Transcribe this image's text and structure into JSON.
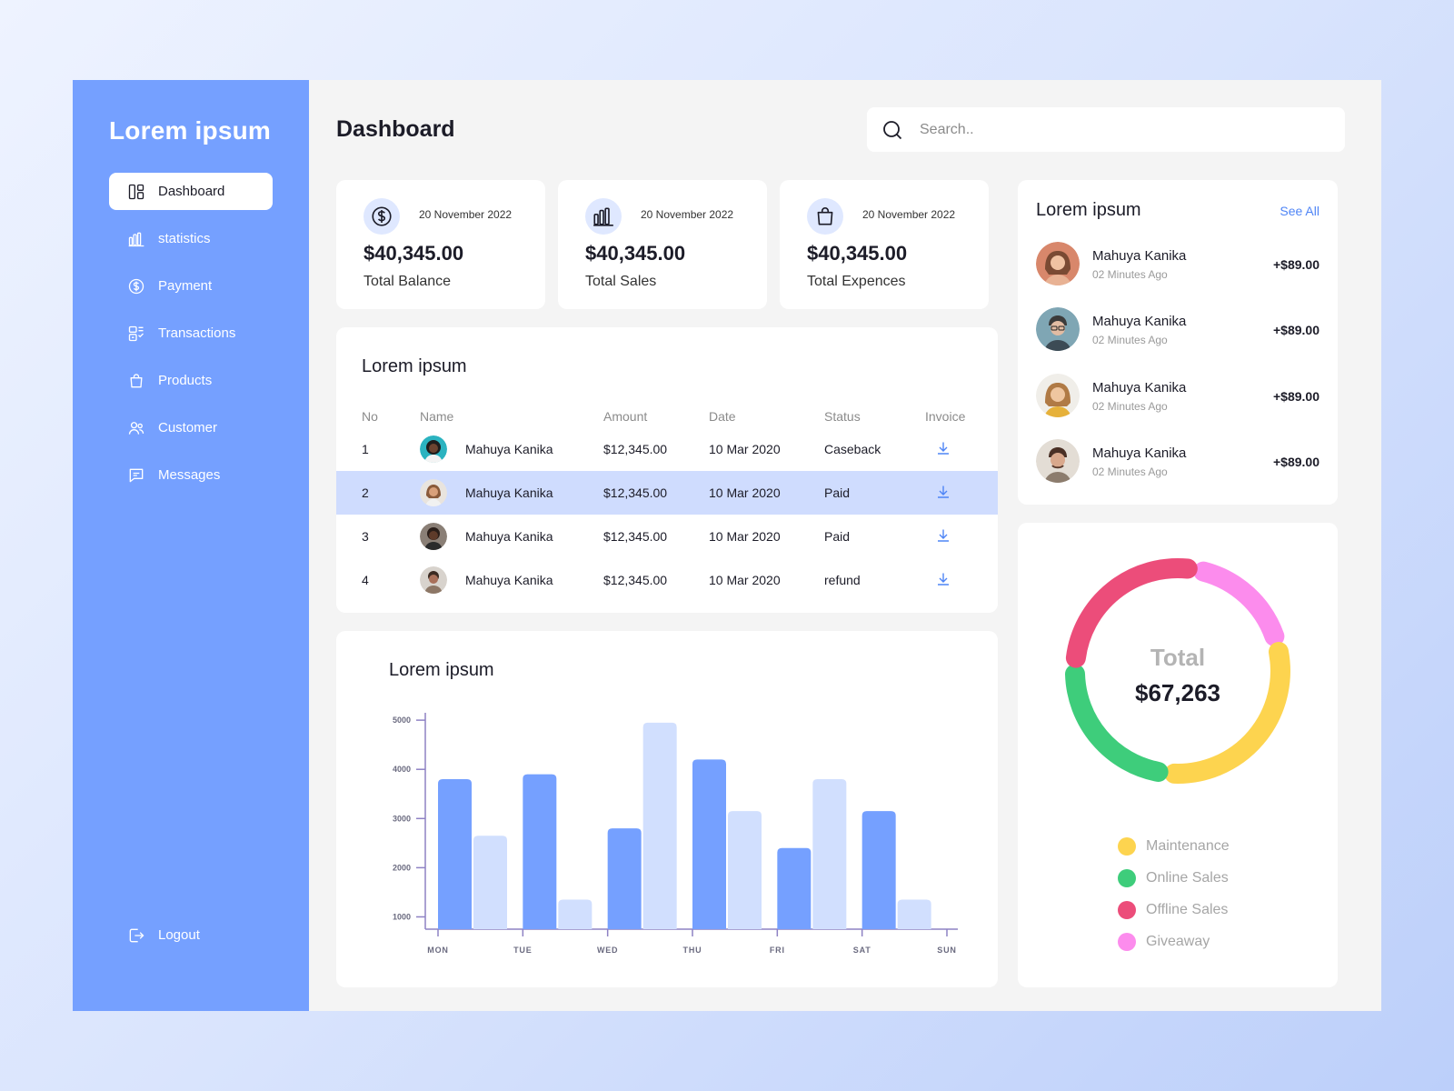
{
  "brand": "Lorem ipsum",
  "sidebar": {
    "items": [
      {
        "label": "Dashboard",
        "icon": "dashboard-icon",
        "active": true
      },
      {
        "label": "statistics",
        "icon": "bar-chart-icon"
      },
      {
        "label": "Payment",
        "icon": "dollar-circle-icon"
      },
      {
        "label": "Transactions",
        "icon": "transactions-icon"
      },
      {
        "label": "Products",
        "icon": "shopping-bag-icon"
      },
      {
        "label": "Customer",
        "icon": "users-icon"
      },
      {
        "label": "Messages",
        "icon": "message-icon"
      }
    ],
    "logout": "Logout"
  },
  "header": {
    "title": "Dashboard",
    "search_placeholder": "Search.."
  },
  "stats": [
    {
      "date": "20 November 2022",
      "amount": "$40,345.00",
      "label": "Total Balance",
      "icon": "dollar-circle-icon"
    },
    {
      "date": "20 November 2022",
      "amount": "$40,345.00",
      "label": "Total Sales",
      "icon": "bar-chart-icon"
    },
    {
      "date": "20 November 2022",
      "amount": "$40,345.00",
      "label": "Total Expences",
      "icon": "shopping-bag-icon"
    }
  ],
  "table": {
    "title": "Lorem ipsum",
    "columns": [
      "No",
      "Name",
      "Amount",
      "Date",
      "Status",
      "Invoice"
    ],
    "rows": [
      {
        "no": "1",
        "name": "Mahuya Kanika",
        "amount": "$12,345.00",
        "date": "10 Mar 2020",
        "status": "Caseback",
        "selected": false
      },
      {
        "no": "2",
        "name": "Mahuya Kanika",
        "amount": "$12,345.00",
        "date": "10 Mar 2020",
        "status": "Paid",
        "selected": true
      },
      {
        "no": "3",
        "name": "Mahuya Kanika",
        "amount": "$12,345.00",
        "date": "10 Mar 2020",
        "status": "Paid",
        "selected": false
      },
      {
        "no": "4",
        "name": "Mahuya Kanika",
        "amount": "$12,345.00",
        "date": "10 Mar 2020",
        "status": "refund",
        "selected": false
      }
    ]
  },
  "recent": {
    "title": "Lorem ipsum",
    "see_all": "See All",
    "items": [
      {
        "name": "Mahuya Kanika",
        "time": "02 Minutes Ago",
        "amount": "+$89.00"
      },
      {
        "name": "Mahuya Kanika",
        "time": "02 Minutes Ago",
        "amount": "+$89.00"
      },
      {
        "name": "Mahuya Kanika",
        "time": "02 Minutes Ago",
        "amount": "+$89.00"
      },
      {
        "name": "Mahuya Kanika",
        "time": "02 Minutes Ago",
        "amount": "+$89.00"
      }
    ]
  },
  "bar_title": "Lorem ipsum",
  "donut": {
    "total_label": "Total",
    "total_value": "$67,263",
    "legend": [
      {
        "label": "Maintenance",
        "color": "#fdd44f"
      },
      {
        "label": "Online Sales",
        "color": "#3ecd7b"
      },
      {
        "label": "Offline Sales",
        "color": "#ec4d7a"
      },
      {
        "label": "Giveaway",
        "color": "#fc8ced"
      }
    ]
  },
  "colors": {
    "accent": "#75a0ff",
    "bar_primary": "#75a0ff",
    "bar_secondary": "#d1dffe",
    "selected_row": "#cfdcfe",
    "link": "#4f85f6"
  },
  "chart_data": [
    {
      "type": "bar",
      "title": "Lorem ipsum",
      "categories": [
        "MON",
        "TUE",
        "WED",
        "THU",
        "FRI",
        "SAT",
        "SUN"
      ],
      "yticks": [
        1000,
        2000,
        3000,
        4000,
        5000
      ],
      "ylim": [
        750,
        5150
      ],
      "series": [
        {
          "values": [
            3800,
            3900,
            2800,
            4200,
            2400,
            3150,
            null
          ]
        },
        {
          "values": [
            2650,
            1350,
            4950,
            3150,
            3800,
            1350,
            null
          ]
        }
      ]
    },
    {
      "type": "pie",
      "categories": [
        "Maintenance",
        "Online Sales",
        "Offline Sales",
        "Giveaway"
      ],
      "values": [
        31,
        24,
        27,
        18
      ]
    }
  ]
}
